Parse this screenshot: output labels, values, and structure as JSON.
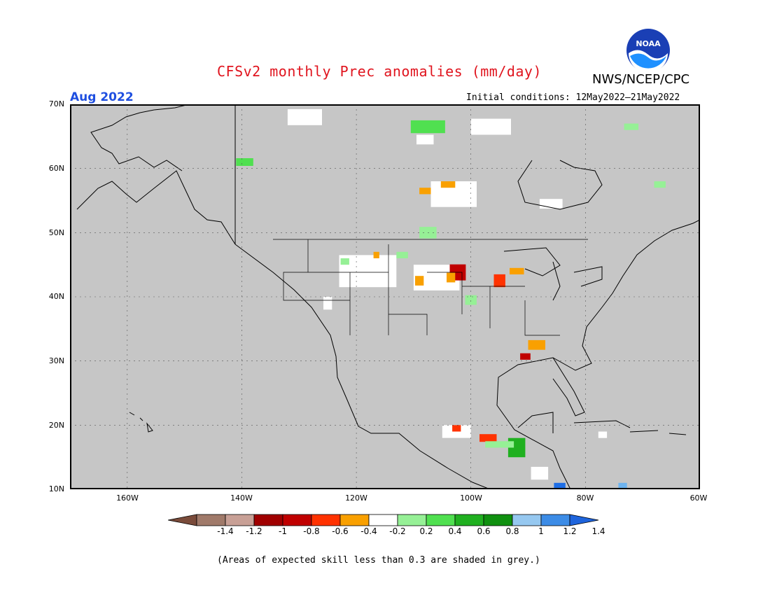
{
  "title": "CFSv2 monthly Prec anomalies (mm/day)",
  "organization": "NWS/NCEP/CPC",
  "logo_text": "NOAA",
  "forecast_month": "Aug 2022",
  "initial_conditions": "Initial conditions: 12May2022–21May2022",
  "footnote": "(Areas of expected skill less than 0.3 are shaded in grey.)",
  "map": {
    "lon_range": [
      -170,
      -60
    ],
    "lat_range": [
      10,
      70
    ],
    "background_color": "#c6c6c6",
    "lat_labels": [
      {
        "value": 70,
        "text": "70N"
      },
      {
        "value": 60,
        "text": "60N"
      },
      {
        "value": 50,
        "text": "50N"
      },
      {
        "value": 40,
        "text": "40N"
      },
      {
        "value": 30,
        "text": "30N"
      },
      {
        "value": 20,
        "text": "20N"
      },
      {
        "value": 10,
        "text": "10N"
      }
    ],
    "lon_labels": [
      {
        "value": -160,
        "text": "160W"
      },
      {
        "value": -140,
        "text": "140W"
      },
      {
        "value": -120,
        "text": "120W"
      },
      {
        "value": -100,
        "text": "100W"
      },
      {
        "value": -80,
        "text": "80W"
      },
      {
        "value": -60,
        "text": "60W"
      }
    ],
    "anomaly_regions": [
      {
        "lon": -129,
        "lat": 68,
        "w": 6,
        "h": 2.5,
        "color": "#ffffff"
      },
      {
        "lon": -107.5,
        "lat": 66.5,
        "w": 6,
        "h": 2,
        "color": "#50e050"
      },
      {
        "lon": -108,
        "lat": 64.5,
        "w": 3,
        "h": 1.5,
        "color": "#ffffff"
      },
      {
        "lon": -96.5,
        "lat": 66.5,
        "w": 7,
        "h": 2.5,
        "color": "#ffffff"
      },
      {
        "lon": -139.5,
        "lat": 61,
        "w": 3,
        "h": 1.2,
        "color": "#50e050"
      },
      {
        "lon": -103,
        "lat": 56,
        "w": 8,
        "h": 4,
        "color": "#ffffff"
      },
      {
        "lon": -104,
        "lat": 57.5,
        "w": 2.5,
        "h": 1,
        "color": "#f9a000"
      },
      {
        "lon": -108,
        "lat": 56.5,
        "w": 2,
        "h": 1,
        "color": "#f9a000"
      },
      {
        "lon": -86,
        "lat": 54.5,
        "w": 4,
        "h": 1.5,
        "color": "#ffffff"
      },
      {
        "lon": -107.5,
        "lat": 50,
        "w": 3,
        "h": 1.8,
        "color": "#96f096"
      },
      {
        "lon": -118,
        "lat": 44,
        "w": 10,
        "h": 5,
        "color": "#ffffff"
      },
      {
        "lon": -106,
        "lat": 43,
        "w": 8,
        "h": 4,
        "color": "#ffffff"
      },
      {
        "lon": -102.3,
        "lat": 43.8,
        "w": 2.8,
        "h": 2.5,
        "color": "#c00000"
      },
      {
        "lon": -103.5,
        "lat": 43,
        "w": 1.5,
        "h": 1.5,
        "color": "#f9a000"
      },
      {
        "lon": -109,
        "lat": 42.5,
        "w": 1.5,
        "h": 1.5,
        "color": "#f9a000"
      },
      {
        "lon": -95,
        "lat": 42.5,
        "w": 2,
        "h": 2,
        "color": "#ff3200"
      },
      {
        "lon": -92,
        "lat": 44,
        "w": 2.5,
        "h": 1,
        "color": "#f9a000"
      },
      {
        "lon": -100,
        "lat": 39.5,
        "w": 2,
        "h": 1.5,
        "color": "#96f096"
      },
      {
        "lon": -88.5,
        "lat": 32.5,
        "w": 3,
        "h": 1.5,
        "color": "#f9a000"
      },
      {
        "lon": -90.5,
        "lat": 30.7,
        "w": 1.8,
        "h": 1,
        "color": "#c00000"
      },
      {
        "lon": -102.5,
        "lat": 19,
        "w": 5,
        "h": 2,
        "color": "#ffffff"
      },
      {
        "lon": -102.5,
        "lat": 19.5,
        "w": 1.5,
        "h": 1,
        "color": "#ff3200"
      },
      {
        "lon": -97,
        "lat": 18,
        "w": 3,
        "h": 1.2,
        "color": "#ff3200"
      },
      {
        "lon": -92,
        "lat": 16.5,
        "w": 3,
        "h": 3,
        "color": "#20b020"
      },
      {
        "lon": -95,
        "lat": 17,
        "w": 5,
        "h": 1,
        "color": "#96f096"
      },
      {
        "lon": -88,
        "lat": 12.5,
        "w": 3,
        "h": 2,
        "color": "#ffffff"
      },
      {
        "lon": -84.5,
        "lat": 10.5,
        "w": 2,
        "h": 1,
        "color": "#1e6ee6"
      },
      {
        "lon": -73.5,
        "lat": 10.6,
        "w": 1.5,
        "h": 0.8,
        "color": "#6eb4f0"
      },
      {
        "lon": -72,
        "lat": 66.5,
        "w": 2.5,
        "h": 1,
        "color": "#96f096"
      },
      {
        "lon": -67,
        "lat": 57.5,
        "w": 2,
        "h": 1,
        "color": "#96f096"
      },
      {
        "lon": -122,
        "lat": 45.5,
        "w": 1.5,
        "h": 1,
        "color": "#96f096"
      },
      {
        "lon": -112,
        "lat": 46.5,
        "w": 2,
        "h": 1,
        "color": "#96f096"
      },
      {
        "lon": -116.5,
        "lat": 46.5,
        "w": 1,
        "h": 1,
        "color": "#f9a000"
      },
      {
        "lon": -125,
        "lat": 39,
        "w": 1.5,
        "h": 2,
        "color": "#ffffff"
      },
      {
        "lon": -77,
        "lat": 18.5,
        "w": 1.5,
        "h": 1,
        "color": "#ffffff"
      }
    ]
  },
  "colorbar": {
    "colors": [
      "#7a4b3a",
      "#a07a6a",
      "#c8a096",
      "#a00000",
      "#c00000",
      "#ff3200",
      "#f9a000",
      "#ffffff",
      "#96f096",
      "#50e050",
      "#20b020",
      "#109010",
      "#96c8f0",
      "#3c8ce6",
      "#1e64dc"
    ],
    "labels": [
      "-1.4",
      "-1.2",
      "-1",
      "-0.8",
      "-0.6",
      "-0.4",
      "-0.2",
      "0.2",
      "0.4",
      "0.6",
      "0.8",
      "1",
      "1.2",
      "1.4"
    ]
  }
}
